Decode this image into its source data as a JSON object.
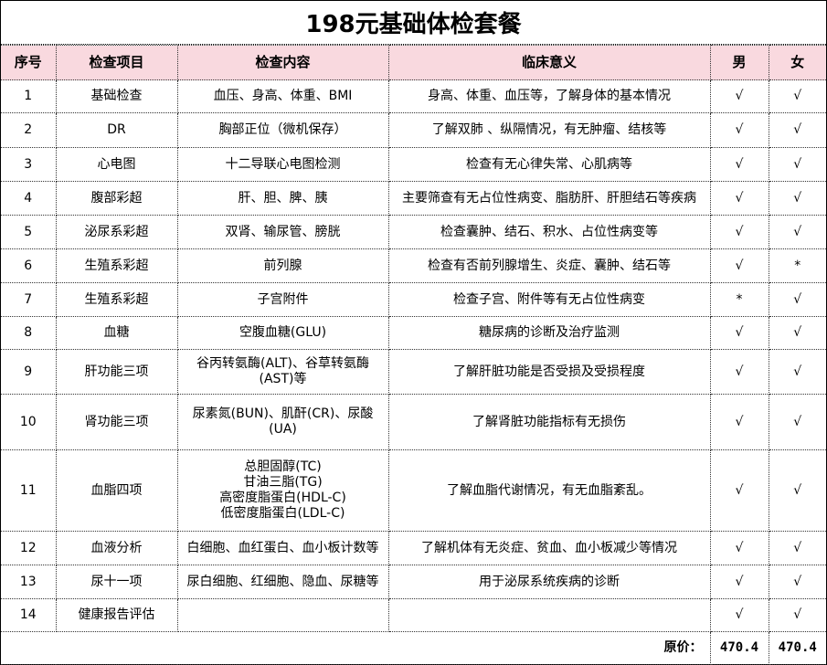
{
  "title": "198元基础体检套餐",
  "headers": [
    "序号",
    "检查项目",
    "检查内容",
    "临床意义",
    "男",
    "女"
  ],
  "rows": [
    {
      "no": "1",
      "item": "基础检查",
      "content": "血压、身高、体重、BMI",
      "meaning": "身高、体重、血压等，了解身体的基本情况",
      "male": "√",
      "female": "√"
    },
    {
      "no": "2",
      "item": "DR",
      "content": "胸部正位（微机保存）",
      "meaning": "了解双肺 、纵隔情况，有无肿瘤、结核等",
      "male": "√",
      "female": "√"
    },
    {
      "no": "3",
      "item": "心电图",
      "content": "十二导联心电图检测",
      "meaning": "检查有无心律失常、心肌病等",
      "male": "√",
      "female": "√"
    },
    {
      "no": "4",
      "item": "腹部彩超",
      "content": "肝、胆、脾、胰",
      "meaning": "主要筛查有无占位性病变、脂肪肝、肝胆结石等疾病",
      "male": "√",
      "female": "√"
    },
    {
      "no": "5",
      "item": "泌尿系彩超",
      "content": "双肾、输尿管、膀胱",
      "meaning": "检查囊肿、结石、积水、占位性病变等",
      "male": "√",
      "female": "√"
    },
    {
      "no": "6",
      "item": "生殖系彩超",
      "content": "前列腺",
      "meaning": "检查有否前列腺增生、炎症、囊肿、结石等",
      "male": "√",
      "female": "*"
    },
    {
      "no": "7",
      "item": "生殖系彩超",
      "content": "子宫附件",
      "meaning": "检查子宫、附件等有无占位性病变",
      "male": "*",
      "female": "√"
    },
    {
      "no": "8",
      "item": "血糖",
      "content": "空腹血糖(GLU)",
      "meaning": "糖尿病的诊断及治疗监测",
      "male": "√",
      "female": "√"
    },
    {
      "no": "9",
      "item": "肝功能三项",
      "content": "谷丙转氨酶(ALT)、谷草转氨酶(AST)等",
      "meaning": "了解肝脏功能是否受损及受损程度",
      "male": "√",
      "female": "√"
    },
    {
      "no": "10",
      "item": "肾功能三项",
      "content": "尿素氮(BUN)、肌酐(CR)、尿酸(UA)",
      "meaning": "了解肾脏功能指标有无损伤",
      "male": "√",
      "female": "√"
    },
    {
      "no": "11",
      "item": "血脂四项",
      "content": "总胆固醇(TC)\n甘油三脂(TG)\n高密度脂蛋白(HDL-C)\n低密度脂蛋白(LDL-C)",
      "meaning": "了解血脂代谢情况，有无血脂紊乱。",
      "male": "√",
      "female": "√"
    },
    {
      "no": "12",
      "item": "血液分析",
      "content": "白细胞、血红蛋白、血小板计数等",
      "meaning": "了解机体有无炎症、贫血、血小板减少等情况",
      "male": "√",
      "female": "√"
    },
    {
      "no": "13",
      "item": "尿十一项",
      "content": "尿白细胞、红细胞、隐血、尿糖等",
      "meaning": "用于泌尿系统疾病的诊断",
      "male": "√",
      "female": "√"
    },
    {
      "no": "14",
      "item": "健康报告评估",
      "content": "",
      "meaning": "",
      "male": "√",
      "female": "√"
    }
  ],
  "total": {
    "label": "原价：",
    "male": "470.4",
    "female": "470.4"
  }
}
